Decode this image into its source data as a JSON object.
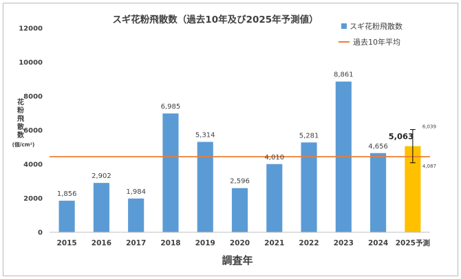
{
  "chart_data": {
    "type": "bar",
    "title": "スギ花粉飛散数（過去10年及び2025年予測値）",
    "xlabel": "調査年",
    "ylabel_chars": [
      "花",
      "粉",
      "飛",
      "散",
      "数"
    ],
    "ylabel_unit": "(個/cm²)",
    "ylim": [
      0,
      12000
    ],
    "yticks": [
      "0",
      "2000",
      "4000",
      "6000",
      "8000",
      "10000",
      "12000"
    ],
    "grid": false,
    "legend_position": "top-right",
    "categories": [
      "2015",
      "2016",
      "2017",
      "2018",
      "2019",
      "2020",
      "2021",
      "2022",
      "2023",
      "2024",
      "2025予測"
    ],
    "series": [
      {
        "name": "スギ花粉飛散数",
        "values": [
          1856,
          2902,
          1984,
          6985,
          5314,
          2596,
          4010,
          5281,
          8861,
          4656,
          5063
        ],
        "labels": [
          "1,856",
          "2,902",
          "1,984",
          "6,985",
          "5,314",
          "2,596",
          "4,010",
          "5,281",
          "8,861",
          "4,656",
          "5,063"
        ],
        "color": "#5b9bd5",
        "forecast_color": "#ffc000"
      },
      {
        "name": "過去10年平均",
        "type": "line",
        "value": 4445,
        "color": "#ed7d31"
      }
    ],
    "forecast_error": {
      "upper": 6039,
      "lower": 4087,
      "upper_label": "6,039",
      "lower_label": "4,087"
    }
  }
}
